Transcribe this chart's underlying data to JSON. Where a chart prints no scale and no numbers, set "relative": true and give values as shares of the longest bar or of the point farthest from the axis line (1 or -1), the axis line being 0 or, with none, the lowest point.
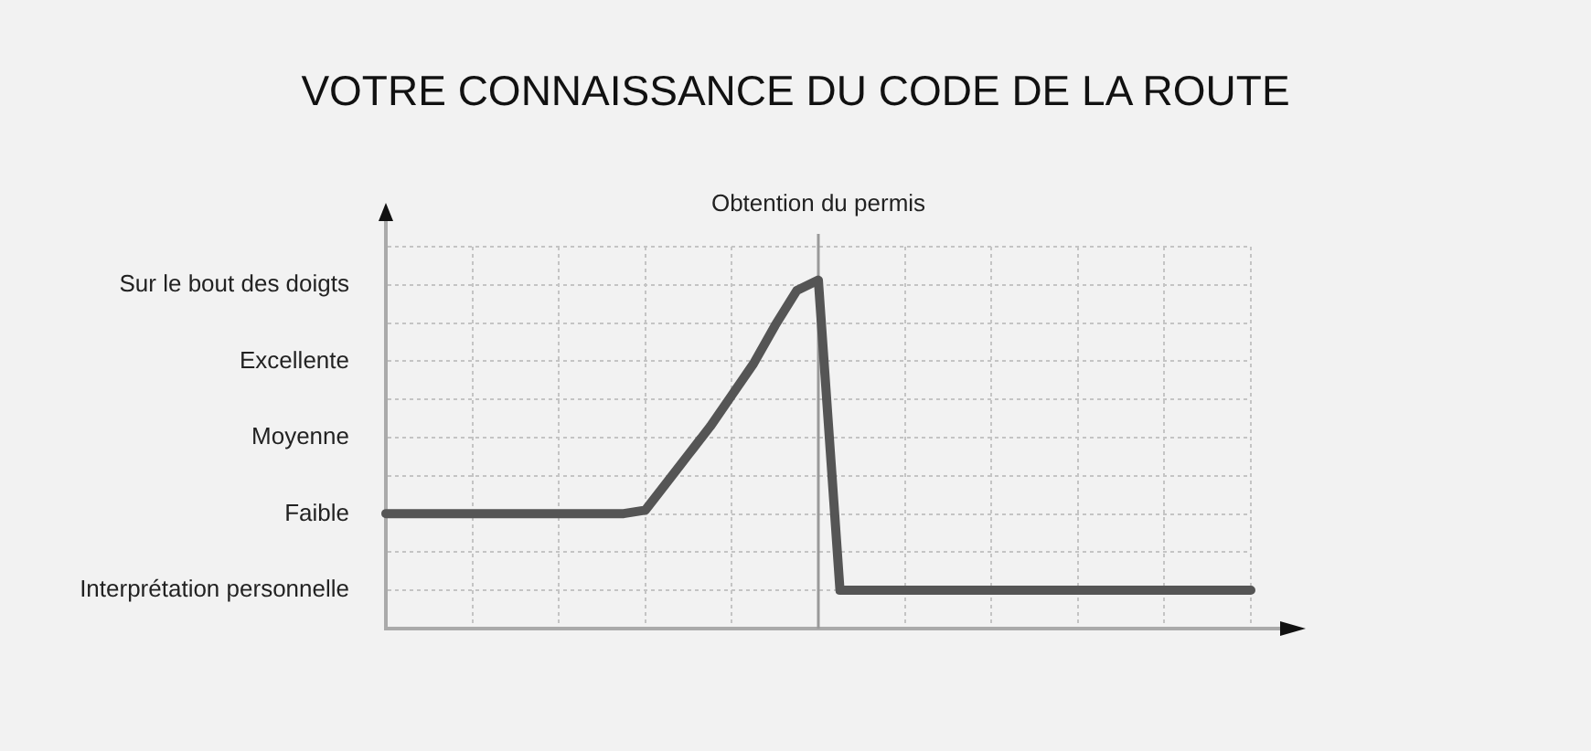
{
  "chart_data": {
    "type": "line",
    "title": "VOTRE CONNAISSANCE DU CODE DE LA ROUTE",
    "relative": true,
    "categories": [
      null,
      null,
      null,
      null,
      null,
      null,
      null,
      null,
      null,
      null,
      null,
      null,
      null,
      null,
      null,
      null,
      null,
      null,
      null,
      null,
      null,
      null,
      null,
      null,
      null,
      null,
      null,
      null,
      null,
      null,
      null,
      null,
      null,
      null,
      null,
      null,
      null,
      null,
      null,
      null,
      null
    ],
    "series": [
      {
        "color": "#555555",
        "values": [
          0.33,
          0.33,
          0.33,
          0.33,
          0.33,
          0.33,
          0.33,
          0.33,
          0.33,
          0.33,
          0.33,
          0.33,
          0.34,
          0.42,
          0.5,
          0.58,
          0.67,
          0.76,
          0.87,
          0.97,
          1,
          0.11,
          0.11,
          0.11,
          0.11,
          0.11,
          0.11,
          0.11,
          0.11,
          0.11,
          0.11,
          0.11,
          0.11,
          0.11,
          0.11,
          0.11,
          0.11,
          0.11,
          0.11,
          0.11,
          0.11
        ]
      }
    ],
    "annotations": [
      "Sur le bout des doigts",
      "Excellente",
      "Moyenne",
      "Faible",
      "Interprétation personnelle"
    ],
    "ref_lines": [
      {
        "axis": "x",
        "label": "Obtention du permis",
        "color": "#999999"
      }
    ],
    "grid": true,
    "legend": false,
    "marker": "none",
    "line_style": "solid"
  }
}
